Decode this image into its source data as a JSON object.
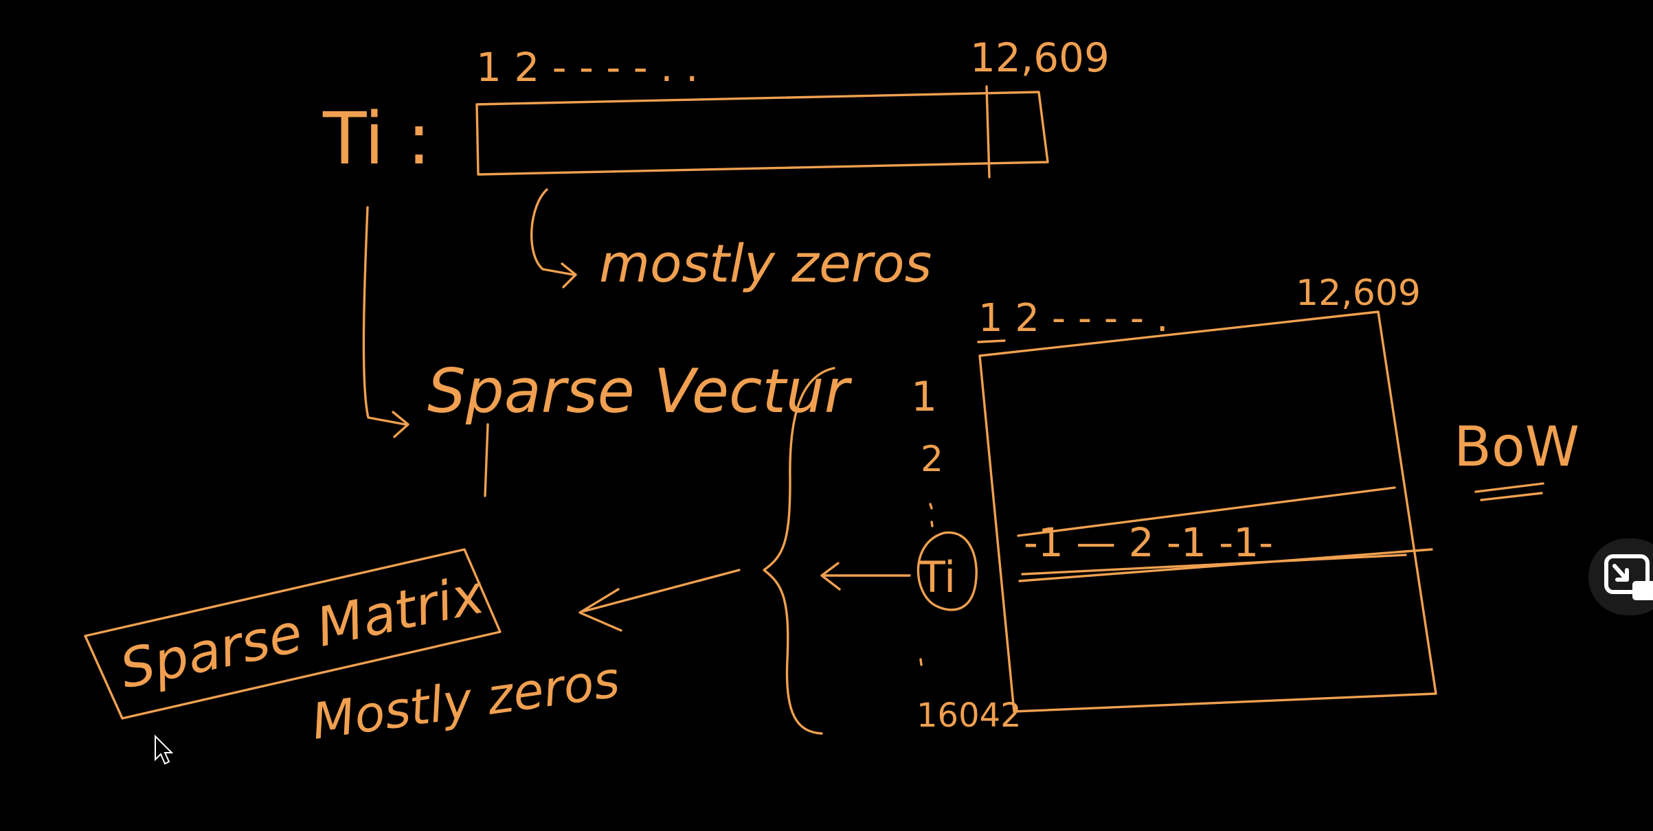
{
  "colors": {
    "background": "#000000",
    "ink": "#f0a050",
    "control_bg": "#1b1b1b",
    "control_icon": "#ffffff"
  },
  "vector": {
    "label": "Ti :",
    "index_start": "1 2 - - - - . .",
    "index_end": "12,609",
    "note": "mostly zeros",
    "name": "Sparse Vectur"
  },
  "matrix": {
    "col_start": "1 2 - - - - .",
    "col_end": "12,609",
    "row_1": "1",
    "row_2": "2",
    "row_ti": "Ti",
    "row_last": "16042",
    "row_values": "-1 — 2 -1  -1-",
    "title": "BoW",
    "name": "Sparse Matrix",
    "note": "Mostly zeros"
  },
  "controls": {
    "exit_icon": "exit-picture-in-picture-icon",
    "cursor_icon": "mouse-pointer-icon"
  }
}
